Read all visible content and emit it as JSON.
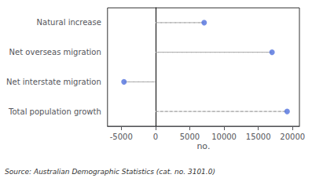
{
  "chart_data": {
    "type": "lollipop",
    "orientation": "horizontal",
    "categories": [
      "Natural increase",
      "Net overseas migration",
      "Net interstate migration",
      "Total population growth"
    ],
    "values": [
      7100,
      17000,
      -4600,
      19200
    ],
    "xlabel": "no.",
    "xlim": [
      -7000,
      21000
    ],
    "xticks": [
      -5000,
      0,
      5000,
      10000,
      15000,
      20000
    ],
    "annotations": [
      "Source: Australian Demographic Statistics (cat. no. 3101.0)"
    ],
    "line_style": "dashed",
    "marker": "circle",
    "grid": false
  }
}
